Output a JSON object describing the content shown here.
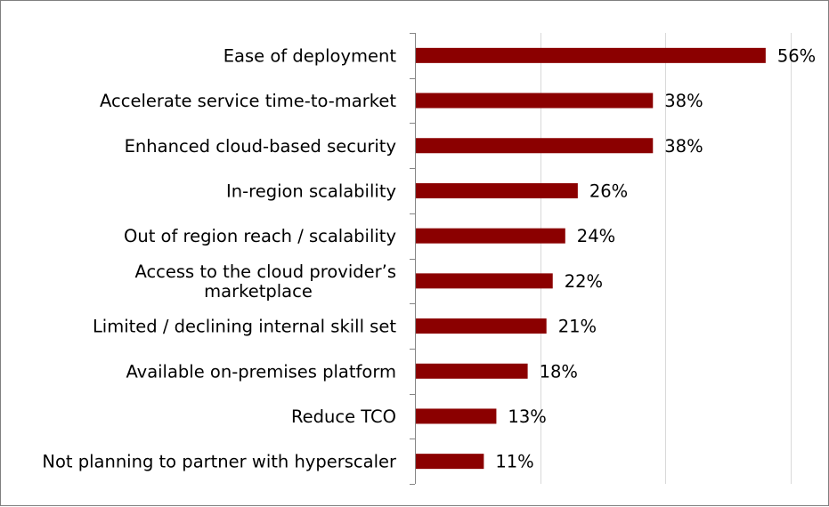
{
  "chart_data": {
    "type": "bar",
    "orientation": "horizontal",
    "categories": [
      "Ease of deployment",
      "Accelerate service time-to-market",
      "Enhanced cloud-based security",
      "In-region scalability",
      "Out of region reach / scalability",
      "Access to the cloud provider’s marketplace",
      "Limited / declining internal skill set",
      "Available on-premises platform",
      "Reduce TCO",
      "Not planning to partner with hyperscaler"
    ],
    "category_lines": [
      [
        "Ease of deployment"
      ],
      [
        "Accelerate service time-to-market"
      ],
      [
        "Enhanced cloud-based security"
      ],
      [
        "In-region scalability"
      ],
      [
        "Out of region reach / scalability"
      ],
      [
        "Access to the cloud provider’s",
        "marketplace"
      ],
      [
        "Limited / declining internal skill set"
      ],
      [
        "Available on-premises platform"
      ],
      [
        "Reduce TCO"
      ],
      [
        "Not planning to partner with hyperscaler"
      ]
    ],
    "values": [
      56,
      38,
      38,
      26,
      24,
      22,
      21,
      18,
      13,
      11
    ],
    "value_labels": [
      "56%",
      "38%",
      "38%",
      "26%",
      "24%",
      "22%",
      "21%",
      "18%",
      "13%",
      "11%"
    ],
    "xlim": [
      0,
      60
    ],
    "gridlines": [
      20,
      40,
      60
    ],
    "grid": true,
    "legend": "none",
    "bar_color": "#8b0000",
    "title": "",
    "xlabel": "",
    "ylabel": ""
  }
}
